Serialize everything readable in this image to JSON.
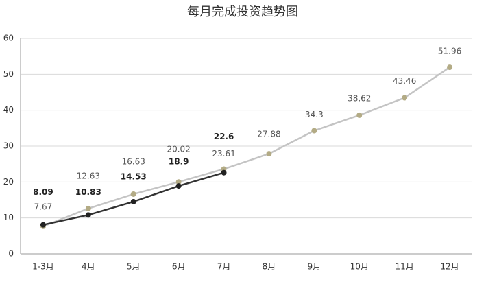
{
  "chart_data": {
    "type": "line",
    "title": "每月完成投资趋势图",
    "categories": [
      "1-3月",
      "4月",
      "5月",
      "6月",
      "7月",
      "8月",
      "9月",
      "10月",
      "11月",
      "12月"
    ],
    "series": [
      {
        "color": "#c4c4c4",
        "marker_color": "#b3ab85",
        "values": [
          7.67,
          12.63,
          16.63,
          20.02,
          23.61,
          27.88,
          34.3,
          38.62,
          43.46,
          51.96
        ]
      },
      {
        "color": "#333333",
        "marker_color": "#222222",
        "values": [
          8.09,
          10.83,
          14.53,
          18.9,
          22.6,
          null,
          null,
          null,
          null,
          null
        ]
      }
    ],
    "ylim": [
      0,
      60
    ],
    "yticks": [
      0,
      10,
      20,
      30,
      40,
      50,
      60
    ],
    "grid": true
  }
}
